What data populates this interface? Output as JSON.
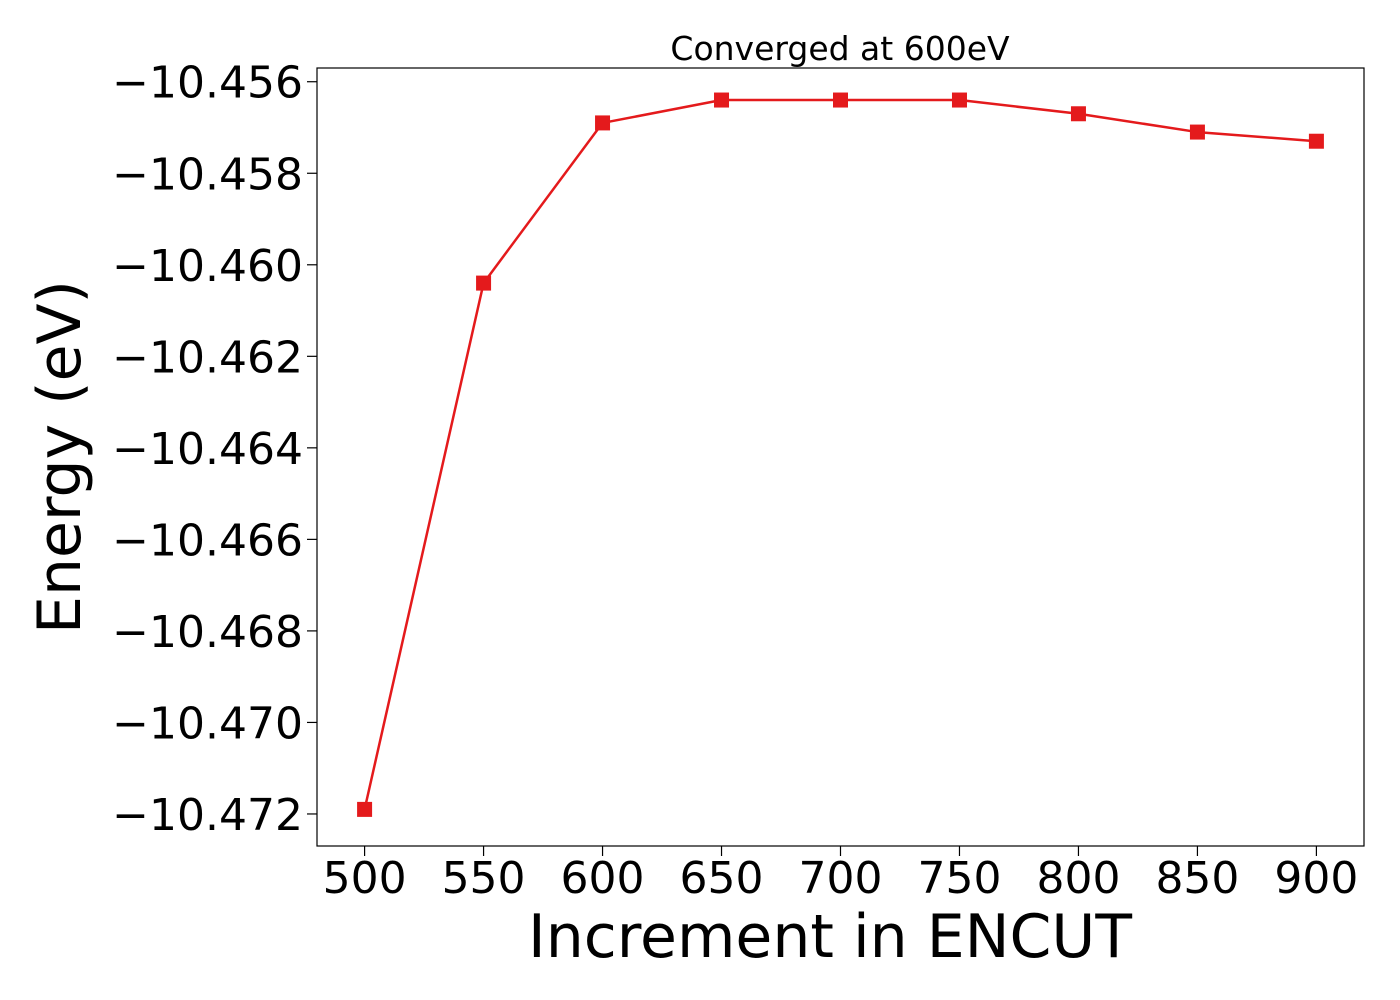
{
  "chart_data": {
    "type": "line",
    "title": "Converged at 600eV",
    "xlabel": "Increment in ENCUT",
    "ylabel": "Energy (eV)",
    "x": [
      500,
      550,
      600,
      650,
      700,
      750,
      800,
      850,
      900
    ],
    "series": [
      {
        "values": [
          -10.4719,
          -10.4604,
          -10.4569,
          -10.4564,
          -10.4564,
          -10.4564,
          -10.4567,
          -10.4571,
          -10.4573
        ],
        "color": "#e41a1c",
        "marker": "square"
      }
    ],
    "xlim": [
      480,
      920
    ],
    "ylim": [
      -10.4727,
      -10.4557
    ],
    "xticks": [
      500,
      550,
      600,
      650,
      700,
      750,
      800,
      850,
      900
    ],
    "xtick_labels": [
      "500",
      "550",
      "600",
      "650",
      "700",
      "750",
      "800",
      "850",
      "900"
    ],
    "yticks": [
      -10.456,
      -10.458,
      -10.46,
      -10.462,
      -10.464,
      -10.466,
      -10.468,
      -10.47,
      -10.472
    ],
    "ytick_labels": [
      "−10.456",
      "−10.458",
      "−10.460",
      "−10.462",
      "−10.464",
      "−10.466",
      "−10.468",
      "−10.470",
      "−10.472"
    ],
    "grid": false,
    "legend": "none"
  }
}
